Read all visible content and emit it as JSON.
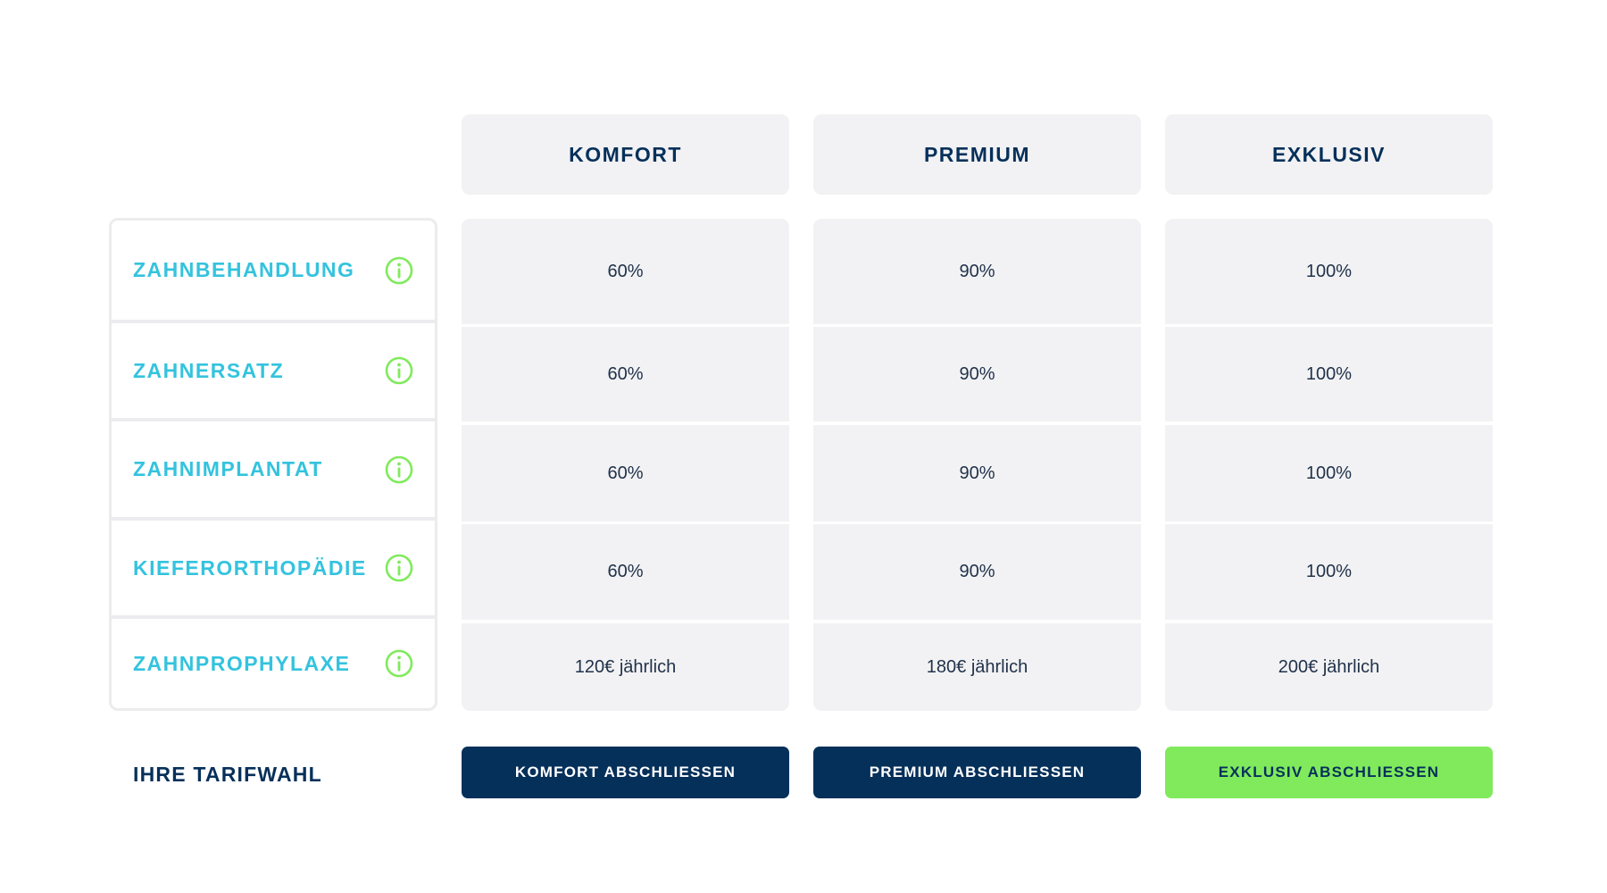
{
  "colors": {
    "navy": "#05305a",
    "accent_cyan": "#34c3de",
    "accent_green": "#80ea5c",
    "cell_background": "#f2f2f4"
  },
  "plans": [
    {
      "name": "KOMFORT"
    },
    {
      "name": "PREMIUM"
    },
    {
      "name": "EXKLUSIV"
    }
  ],
  "features": [
    {
      "label": "ZAHNBEHANDLUNG",
      "icon": "info-icon",
      "values": [
        "60%",
        "90%",
        "100%"
      ]
    },
    {
      "label": "ZAHNERSATZ",
      "icon": "info-icon",
      "values": [
        "60%",
        "90%",
        "100%"
      ]
    },
    {
      "label": "ZAHNIMPLANTAT",
      "icon": "info-icon",
      "values": [
        "60%",
        "90%",
        "100%"
      ]
    },
    {
      "label": "KIEFERORTHOPÄDIE",
      "icon": "info-icon",
      "values": [
        "60%",
        "90%",
        "100%"
      ]
    },
    {
      "label": "ZAHNPROPHYLAXE",
      "icon": "info-icon",
      "values": [
        "120€ jährlich",
        "180€ jährlich",
        "200€ jährlich"
      ]
    }
  ],
  "selection": {
    "label": "IHRE TARIFWAHL",
    "buttons": [
      {
        "label": "KOMFORT ABSCHLIESSEN",
        "style": "dark"
      },
      {
        "label": "PREMIUM ABSCHLIESSEN",
        "style": "dark"
      },
      {
        "label": "EXKLUSIV ABSCHLIESSEN",
        "style": "green"
      }
    ]
  }
}
